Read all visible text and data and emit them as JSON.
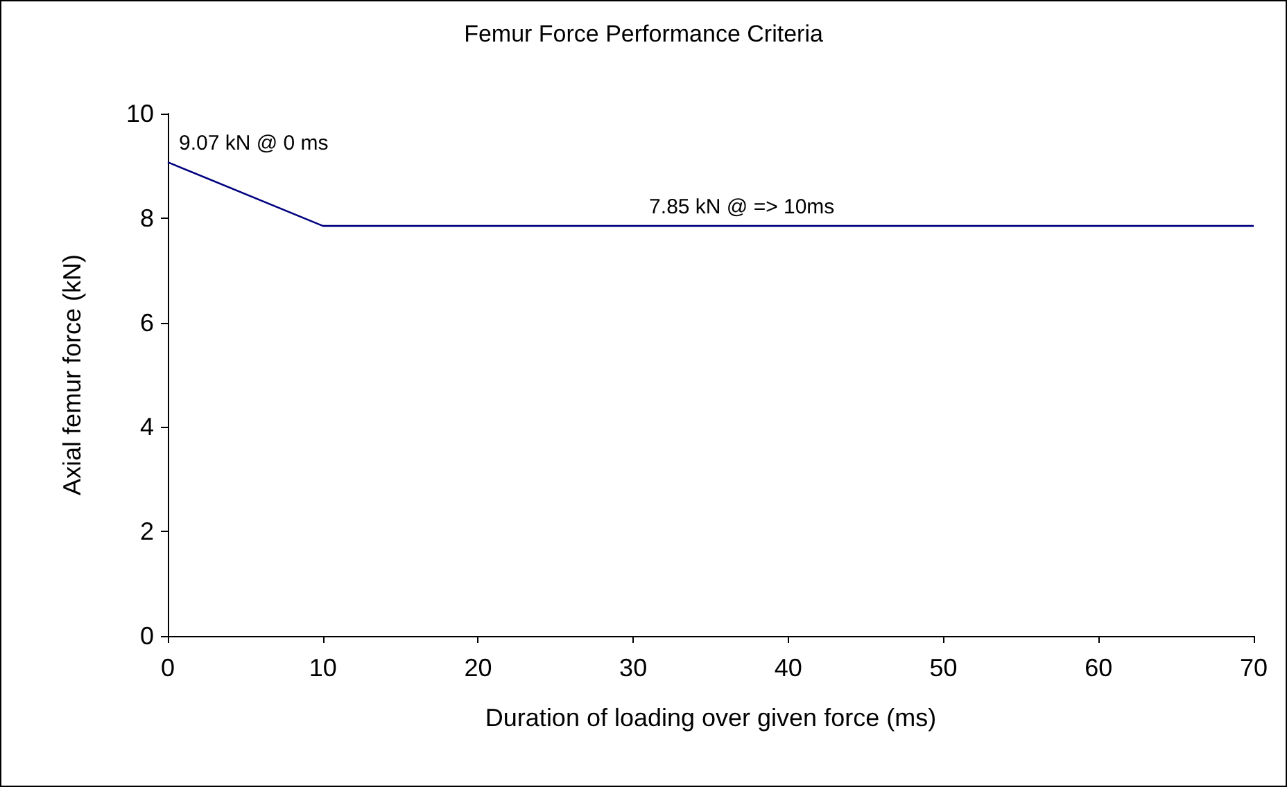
{
  "chart_data": {
    "type": "line",
    "title": "Femur Force Performance Criteria",
    "xlabel": "Duration of loading over given force (ms)",
    "ylabel": "Axial femur force (kN)",
    "x": [
      0,
      10,
      70
    ],
    "series": [
      {
        "color": "#000080",
        "values": [
          9.07,
          7.85,
          7.85
        ]
      }
    ],
    "xlim": [
      0,
      70
    ],
    "xticks": [
      0,
      10,
      20,
      30,
      40,
      50,
      60,
      70
    ],
    "ylim": [
      0,
      10
    ],
    "yticks": [
      0,
      2,
      4,
      6,
      8,
      10
    ],
    "annotations": [
      {
        "text": "9.07 kN @ 0 ms",
        "x": 0,
        "y": 9.07
      },
      {
        "text": "7.85 kN @ => 10ms",
        "x": 37,
        "y": 7.85
      }
    ],
    "grid": false,
    "marker": "none",
    "line_style": "solid"
  }
}
